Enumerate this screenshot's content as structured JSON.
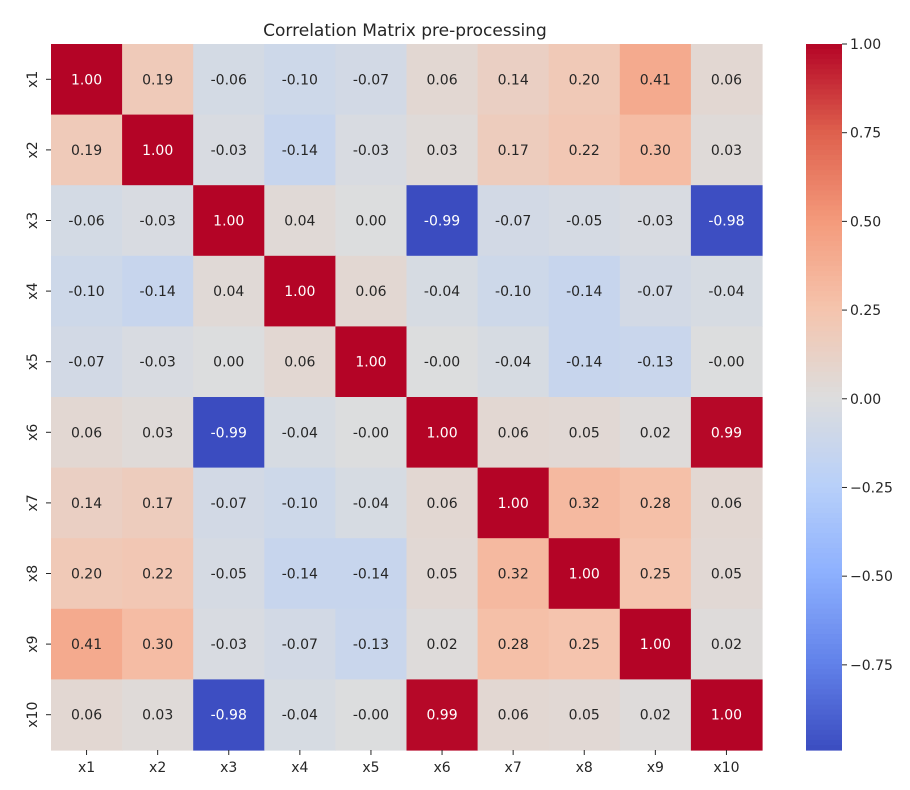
{
  "chart_data": {
    "type": "heatmap",
    "title": "Correlation Matrix pre-processing",
    "xlabels": [
      "x1",
      "x2",
      "x3",
      "x4",
      "x5",
      "x6",
      "x7",
      "x8",
      "x9",
      "x10"
    ],
    "ylabels": [
      "x1",
      "x2",
      "x3",
      "x4",
      "x5",
      "x6",
      "x7",
      "x8",
      "x9",
      "x10"
    ],
    "values": [
      [
        1.0,
        0.19,
        -0.06,
        -0.1,
        -0.07,
        0.06,
        0.14,
        0.2,
        0.41,
        0.06
      ],
      [
        0.19,
        1.0,
        -0.03,
        -0.14,
        -0.03,
        0.03,
        0.17,
        0.22,
        0.3,
        0.03
      ],
      [
        -0.06,
        -0.03,
        1.0,
        0.04,
        0.0,
        -0.99,
        -0.07,
        -0.05,
        -0.03,
        -0.98
      ],
      [
        -0.1,
        -0.14,
        0.04,
        1.0,
        0.06,
        -0.04,
        -0.1,
        -0.14,
        -0.07,
        -0.04
      ],
      [
        -0.07,
        -0.03,
        0.0,
        0.06,
        1.0,
        -0.0,
        -0.04,
        -0.14,
        -0.13,
        -0.0
      ],
      [
        0.06,
        0.03,
        -0.99,
        -0.04,
        -0.0,
        1.0,
        0.06,
        0.05,
        0.02,
        0.99
      ],
      [
        0.14,
        0.17,
        -0.07,
        -0.1,
        -0.04,
        0.06,
        1.0,
        0.32,
        0.28,
        0.06
      ],
      [
        0.2,
        0.22,
        -0.05,
        -0.14,
        -0.14,
        0.05,
        0.32,
        1.0,
        0.25,
        0.05
      ],
      [
        0.41,
        0.3,
        -0.03,
        -0.07,
        -0.13,
        0.02,
        0.28,
        0.25,
        1.0,
        0.02
      ],
      [
        0.06,
        0.03,
        -0.98,
        -0.04,
        -0.0,
        0.99,
        0.06,
        0.05,
        0.02,
        1.0
      ]
    ],
    "annotation_format": "0.00",
    "colormap": "coolwarm",
    "color_range": [
      -0.99,
      1.0
    ],
    "colorbar": {
      "ticks": [
        1.0,
        0.75,
        0.5,
        0.25,
        0.0,
        -0.25,
        -0.5,
        -0.75
      ],
      "tick_labels": [
        "1.00",
        "0.75",
        "0.50",
        "0.25",
        "0.00",
        "−0.25",
        "−0.50",
        "−0.75"
      ]
    },
    "grid": false
  }
}
